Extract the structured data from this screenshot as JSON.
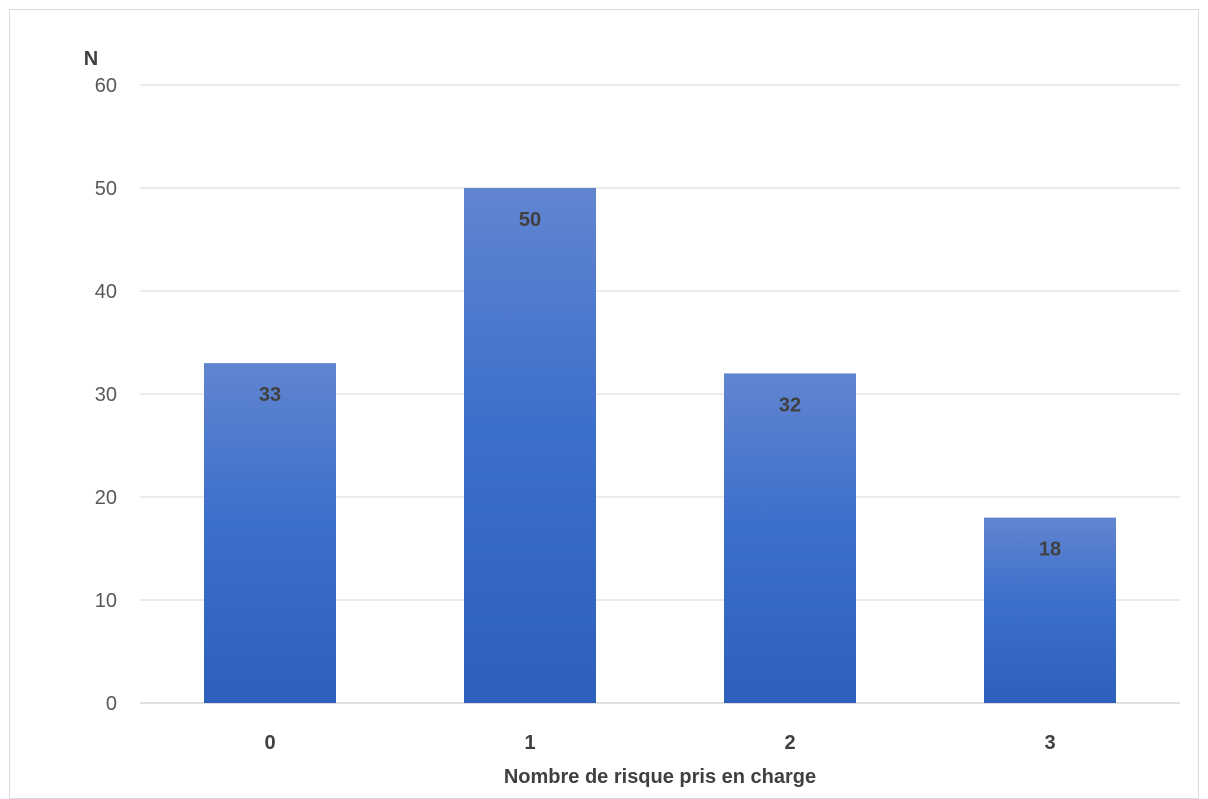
{
  "chart_data": {
    "type": "bar",
    "categories": [
      "0",
      "1",
      "2",
      "3"
    ],
    "values": [
      33,
      50,
      32,
      18
    ],
    "data_labels": [
      "33",
      "50",
      "32",
      "18"
    ],
    "title": "",
    "xlabel": "Nombre de risque pris en charge",
    "ylabel": "N",
    "ylim": [
      0,
      60
    ],
    "yticks": [
      "0",
      "10",
      "20",
      "30",
      "40",
      "50",
      "60"
    ],
    "grid": true,
    "legend": "none",
    "colors": {
      "bar_top": "#6185d0",
      "bar_mid": "#3d6fcc",
      "bar_bottom": "#2e5fbd",
      "grid": "#d9d9d9",
      "axis": "#bfbfbf"
    }
  }
}
